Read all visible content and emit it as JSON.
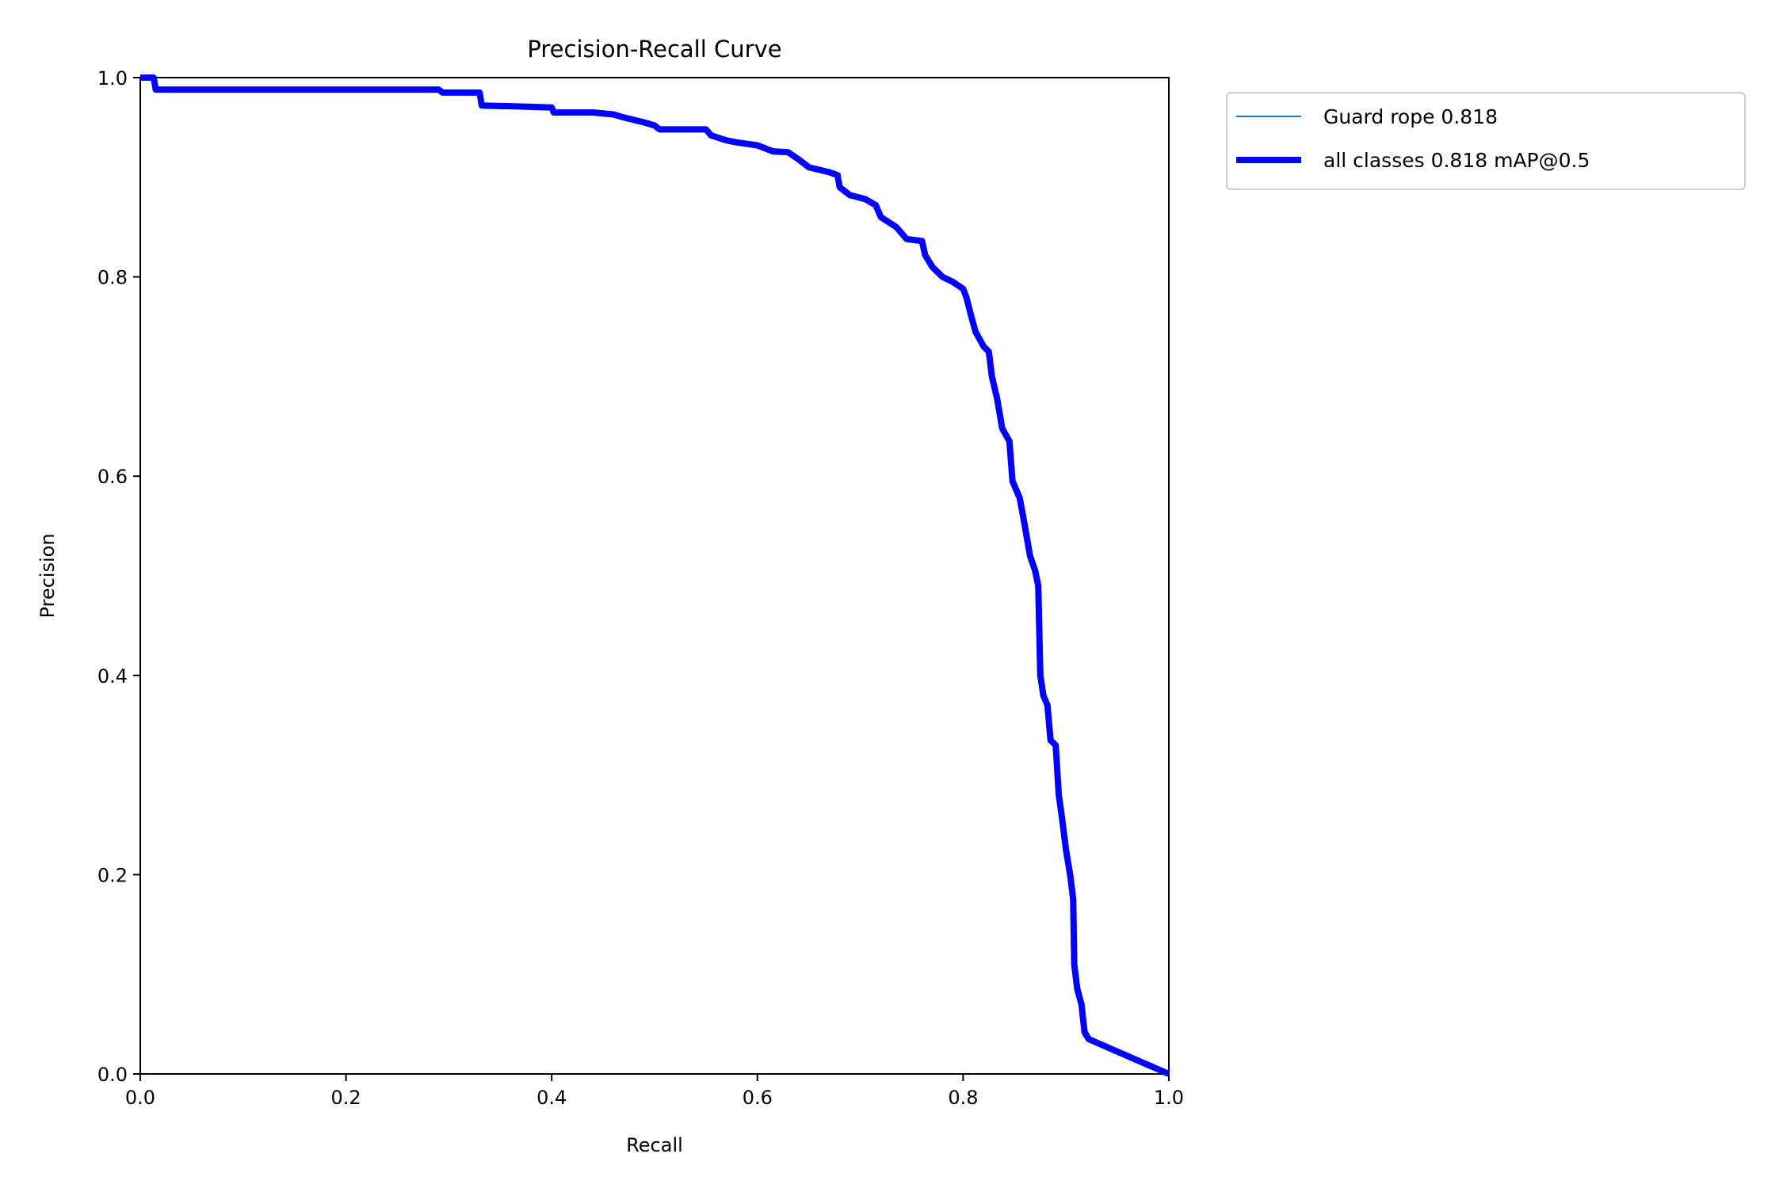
{
  "chart_data": {
    "type": "line",
    "title": "Precision-Recall Curve",
    "xlabel": "Recall",
    "ylabel": "Precision",
    "xlim": [
      0,
      1
    ],
    "ylim": [
      0,
      1
    ],
    "x_ticks": [
      "0.0",
      "0.2",
      "0.4",
      "0.6",
      "0.8",
      "1.0"
    ],
    "y_ticks": [
      "0.0",
      "0.2",
      "0.4",
      "0.6",
      "0.8",
      "1.0"
    ],
    "grid": false,
    "legend_position": "outside upper right",
    "series": [
      {
        "name": "Guard rope 0.818",
        "color": "#1f77b4",
        "points": [
          [
            0.0,
            1.0
          ],
          [
            0.013,
            1.0
          ],
          [
            0.015,
            0.988
          ],
          [
            0.29,
            0.988
          ],
          [
            0.294,
            0.985
          ],
          [
            0.33,
            0.985
          ],
          [
            0.332,
            0.972
          ],
          [
            0.37,
            0.971
          ],
          [
            0.4,
            0.97
          ],
          [
            0.402,
            0.965
          ],
          [
            0.44,
            0.965
          ],
          [
            0.46,
            0.963
          ],
          [
            0.47,
            0.96
          ],
          [
            0.49,
            0.955
          ],
          [
            0.5,
            0.952
          ],
          [
            0.505,
            0.948
          ],
          [
            0.55,
            0.948
          ],
          [
            0.555,
            0.942
          ],
          [
            0.57,
            0.937
          ],
          [
            0.58,
            0.935
          ],
          [
            0.6,
            0.932
          ],
          [
            0.615,
            0.926
          ],
          [
            0.63,
            0.925
          ],
          [
            0.64,
            0.918
          ],
          [
            0.65,
            0.91
          ],
          [
            0.67,
            0.905
          ],
          [
            0.678,
            0.902
          ],
          [
            0.68,
            0.89
          ],
          [
            0.69,
            0.882
          ],
          [
            0.705,
            0.878
          ],
          [
            0.715,
            0.872
          ],
          [
            0.72,
            0.86
          ],
          [
            0.735,
            0.85
          ],
          [
            0.745,
            0.838
          ],
          [
            0.76,
            0.836
          ],
          [
            0.763,
            0.822
          ],
          [
            0.77,
            0.81
          ],
          [
            0.78,
            0.8
          ],
          [
            0.79,
            0.795
          ],
          [
            0.8,
            0.788
          ],
          [
            0.803,
            0.78
          ],
          [
            0.808,
            0.76
          ],
          [
            0.812,
            0.745
          ],
          [
            0.82,
            0.73
          ],
          [
            0.825,
            0.725
          ],
          [
            0.828,
            0.7
          ],
          [
            0.833,
            0.678
          ],
          [
            0.838,
            0.648
          ],
          [
            0.845,
            0.635
          ],
          [
            0.848,
            0.595
          ],
          [
            0.855,
            0.578
          ],
          [
            0.86,
            0.55
          ],
          [
            0.865,
            0.52
          ],
          [
            0.87,
            0.505
          ],
          [
            0.873,
            0.49
          ],
          [
            0.875,
            0.4
          ],
          [
            0.878,
            0.38
          ],
          [
            0.882,
            0.37
          ],
          [
            0.885,
            0.335
          ],
          [
            0.89,
            0.33
          ],
          [
            0.893,
            0.28
          ],
          [
            0.896,
            0.258
          ],
          [
            0.9,
            0.225
          ],
          [
            0.904,
            0.2
          ],
          [
            0.907,
            0.175
          ],
          [
            0.908,
            0.11
          ],
          [
            0.911,
            0.085
          ],
          [
            0.915,
            0.07
          ],
          [
            0.918,
            0.042
          ],
          [
            0.922,
            0.035
          ],
          [
            1.0,
            0.0
          ]
        ]
      },
      {
        "name": "all classes 0.818 mAP@0.5",
        "color": "#0000ff",
        "points": [
          [
            0.0,
            1.0
          ],
          [
            0.013,
            1.0
          ],
          [
            0.015,
            0.988
          ],
          [
            0.29,
            0.988
          ],
          [
            0.294,
            0.985
          ],
          [
            0.33,
            0.985
          ],
          [
            0.332,
            0.972
          ],
          [
            0.37,
            0.971
          ],
          [
            0.4,
            0.97
          ],
          [
            0.402,
            0.965
          ],
          [
            0.44,
            0.965
          ],
          [
            0.46,
            0.963
          ],
          [
            0.47,
            0.96
          ],
          [
            0.49,
            0.955
          ],
          [
            0.5,
            0.952
          ],
          [
            0.505,
            0.948
          ],
          [
            0.55,
            0.948
          ],
          [
            0.555,
            0.942
          ],
          [
            0.57,
            0.937
          ],
          [
            0.58,
            0.935
          ],
          [
            0.6,
            0.932
          ],
          [
            0.615,
            0.926
          ],
          [
            0.63,
            0.925
          ],
          [
            0.64,
            0.918
          ],
          [
            0.65,
            0.91
          ],
          [
            0.67,
            0.905
          ],
          [
            0.678,
            0.902
          ],
          [
            0.68,
            0.89
          ],
          [
            0.69,
            0.882
          ],
          [
            0.705,
            0.878
          ],
          [
            0.715,
            0.872
          ],
          [
            0.72,
            0.86
          ],
          [
            0.735,
            0.85
          ],
          [
            0.745,
            0.838
          ],
          [
            0.76,
            0.836
          ],
          [
            0.763,
            0.822
          ],
          [
            0.77,
            0.81
          ],
          [
            0.78,
            0.8
          ],
          [
            0.79,
            0.795
          ],
          [
            0.8,
            0.788
          ],
          [
            0.803,
            0.78
          ],
          [
            0.808,
            0.76
          ],
          [
            0.812,
            0.745
          ],
          [
            0.82,
            0.73
          ],
          [
            0.825,
            0.725
          ],
          [
            0.828,
            0.7
          ],
          [
            0.833,
            0.678
          ],
          [
            0.838,
            0.648
          ],
          [
            0.845,
            0.635
          ],
          [
            0.848,
            0.595
          ],
          [
            0.855,
            0.578
          ],
          [
            0.86,
            0.55
          ],
          [
            0.865,
            0.52
          ],
          [
            0.87,
            0.505
          ],
          [
            0.873,
            0.49
          ],
          [
            0.875,
            0.4
          ],
          [
            0.878,
            0.38
          ],
          [
            0.882,
            0.37
          ],
          [
            0.885,
            0.335
          ],
          [
            0.89,
            0.33
          ],
          [
            0.893,
            0.28
          ],
          [
            0.896,
            0.258
          ],
          [
            0.9,
            0.225
          ],
          [
            0.904,
            0.2
          ],
          [
            0.907,
            0.175
          ],
          [
            0.908,
            0.11
          ],
          [
            0.911,
            0.085
          ],
          [
            0.915,
            0.07
          ],
          [
            0.918,
            0.042
          ],
          [
            0.922,
            0.035
          ],
          [
            1.0,
            0.0
          ]
        ]
      }
    ]
  }
}
